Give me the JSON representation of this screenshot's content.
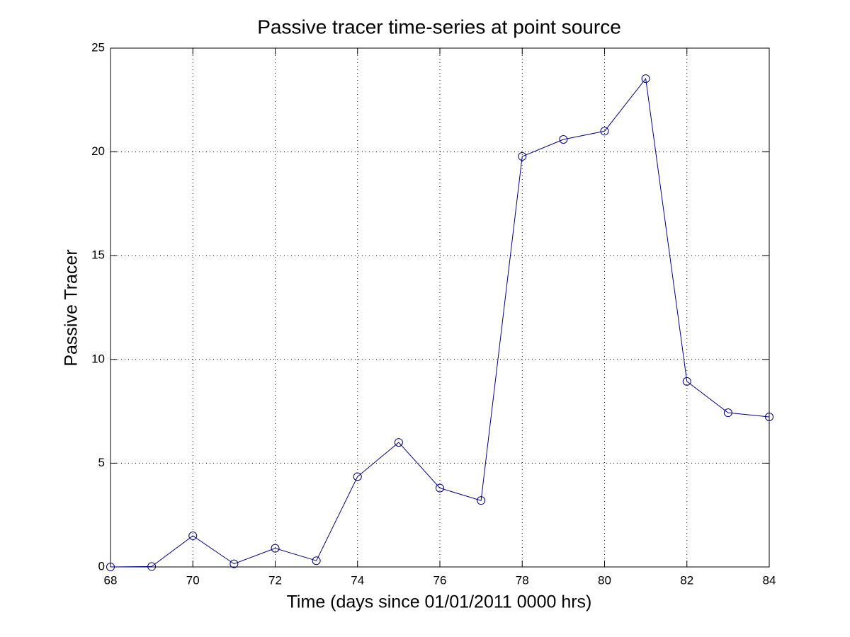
{
  "chart_data": {
    "type": "line",
    "title": "Passive tracer time-series at point source",
    "xlabel": "Time (days since 01/01/2011 0000 hrs)",
    "ylabel": "Passive Tracer",
    "x": [
      68,
      69,
      70,
      71,
      72,
      73,
      74,
      75,
      76,
      77,
      78,
      79,
      80,
      81,
      82,
      83,
      84
    ],
    "series": [
      {
        "color": "#00008b",
        "values": [
          0,
          0.02,
          1.5,
          0.15,
          0.9,
          0.3,
          4.35,
          6.0,
          3.8,
          3.2,
          19.78,
          20.6,
          21.0,
          23.53,
          8.94,
          7.43,
          7.23
        ]
      }
    ],
    "xlim": [
      68,
      84
    ],
    "xticks": [
      68,
      70,
      72,
      74,
      76,
      78,
      80,
      82,
      84
    ],
    "ylim": [
      0,
      25
    ],
    "yticks": [
      0,
      5,
      10,
      15,
      20,
      25
    ],
    "grid": true,
    "marker": "circle"
  }
}
